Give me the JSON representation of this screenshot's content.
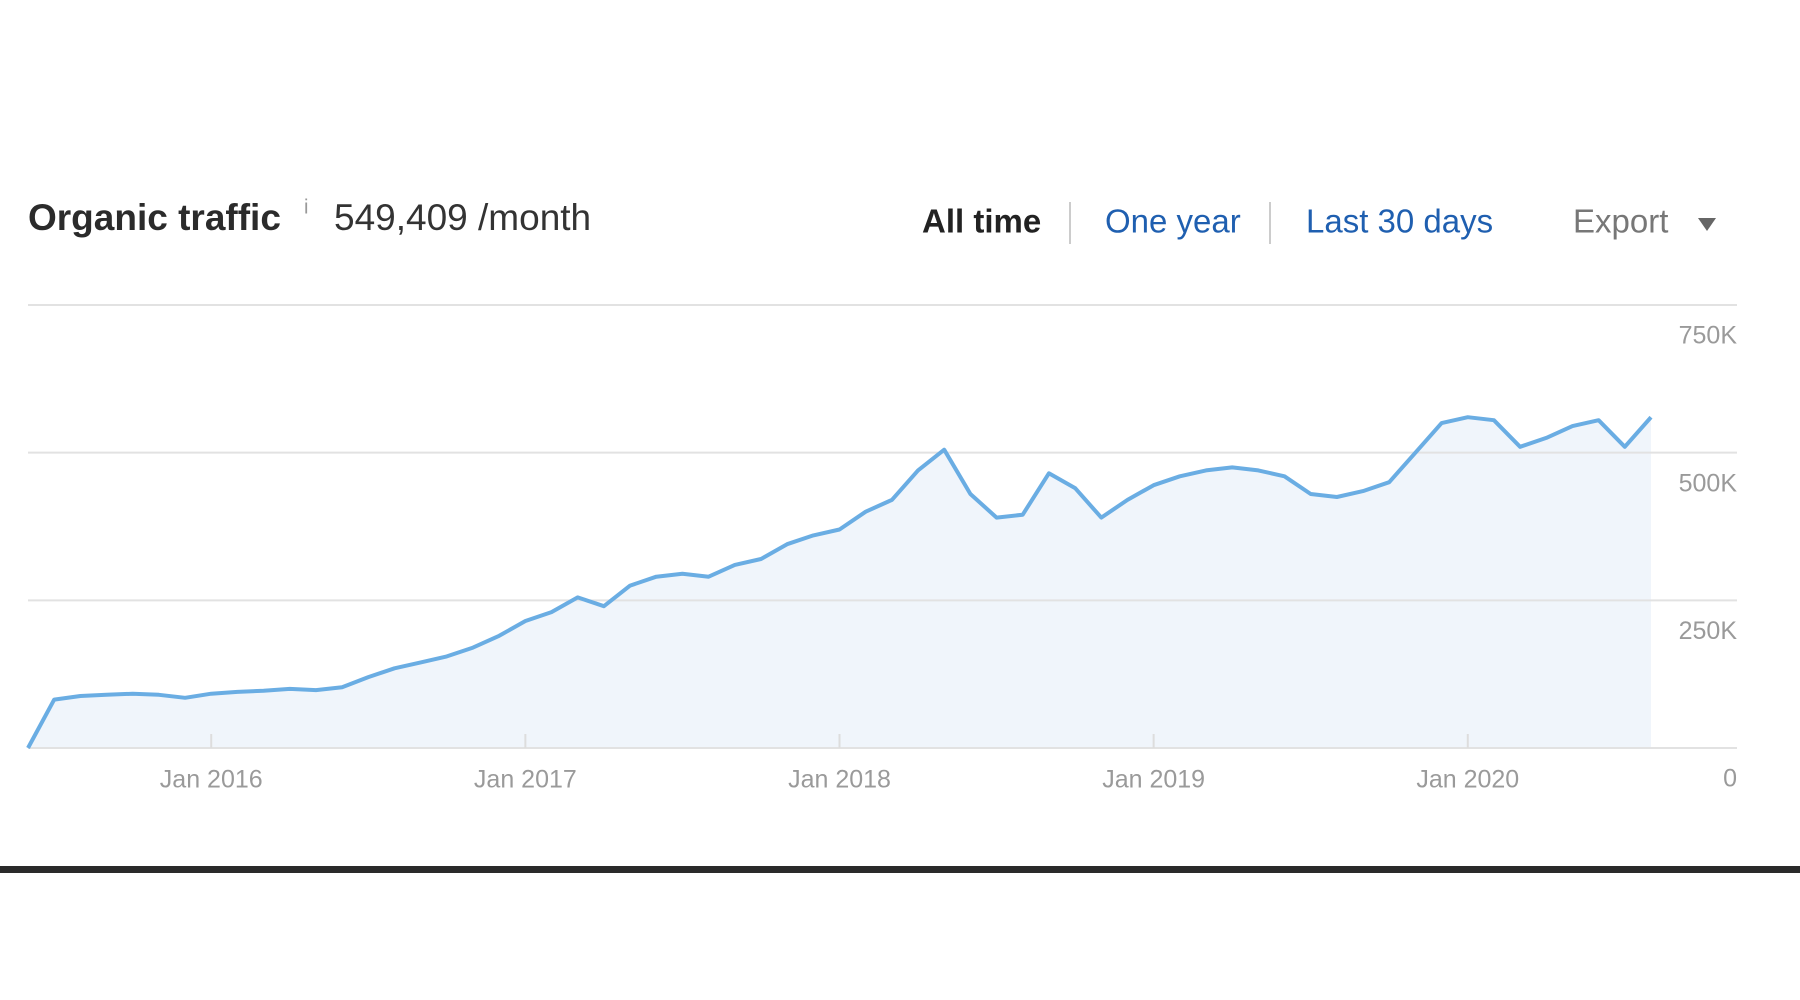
{
  "chart_data": {
    "type": "area",
    "title": "Organic traffic",
    "info": "i",
    "subtitle": "549,409 /month",
    "tabs": [
      "All time",
      "One year",
      "Last 30 days"
    ],
    "export": "Export",
    "color": "#6aade3",
    "fill": "#f0f5fb",
    "grid": true,
    "x": [
      "2015-06",
      "2015-07",
      "2015-08",
      "2015-09",
      "2015-10",
      "2015-11",
      "2015-12",
      "2016-01",
      "2016-02",
      "2016-03",
      "2016-04",
      "2016-05",
      "2016-06",
      "2016-07",
      "2016-08",
      "2016-09",
      "2016-10",
      "2016-11",
      "2016-12",
      "2017-01",
      "2017-02",
      "2017-03",
      "2017-04",
      "2017-05",
      "2017-06",
      "2017-07",
      "2017-08",
      "2017-09",
      "2017-10",
      "2017-11",
      "2017-12",
      "2018-01",
      "2018-02",
      "2018-03",
      "2018-04",
      "2018-05",
      "2018-06",
      "2018-07",
      "2018-08",
      "2018-09",
      "2018-10",
      "2018-11",
      "2018-12",
      "2019-01",
      "2019-02",
      "2019-03",
      "2019-04",
      "2019-05",
      "2019-06",
      "2019-07",
      "2019-08",
      "2019-09",
      "2019-10",
      "2019-11",
      "2019-12",
      "2020-01",
      "2020-02",
      "2020-03",
      "2020-04",
      "2020-05",
      "2020-06",
      "2020-07",
      "2020-08"
    ],
    "series": [
      {
        "name": "Organic traffic",
        "color": "#6aade3",
        "values": [
          0,
          82000,
          88000,
          90000,
          92000,
          90000,
          85000,
          92000,
          95000,
          97000,
          100000,
          98000,
          103000,
          120000,
          135000,
          145000,
          155000,
          170000,
          190000,
          215000,
          230000,
          255000,
          240000,
          275000,
          290000,
          295000,
          290000,
          310000,
          320000,
          345000,
          360000,
          370000,
          400000,
          420000,
          470000,
          505000,
          430000,
          390000,
          395000,
          465000,
          440000,
          390000,
          420000,
          445000,
          460000,
          470000,
          475000,
          470000,
          460000,
          430000,
          425000,
          435000,
          450000,
          500000,
          550000,
          560000,
          555000,
          510000,
          525000,
          545000,
          555000,
          510000,
          560000
        ]
      }
    ],
    "xlim": [
      "2015-06",
      "2020-08"
    ],
    "xticks": [
      {
        "value": "2016-01",
        "label": "Jan 2016"
      },
      {
        "value": "2017-01",
        "label": "Jan 2017"
      },
      {
        "value": "2018-01",
        "label": "Jan 2018"
      },
      {
        "value": "2019-01",
        "label": "Jan 2019"
      },
      {
        "value": "2020-01",
        "label": "Jan 2020"
      }
    ],
    "ylim": [
      0,
      750000
    ],
    "yticks": [
      0,
      {
        "value": 250000,
        "label": "250K"
      },
      {
        "value": 500000,
        "label": "500K"
      },
      {
        "value": 750000,
        "label": "750K"
      }
    ]
  }
}
